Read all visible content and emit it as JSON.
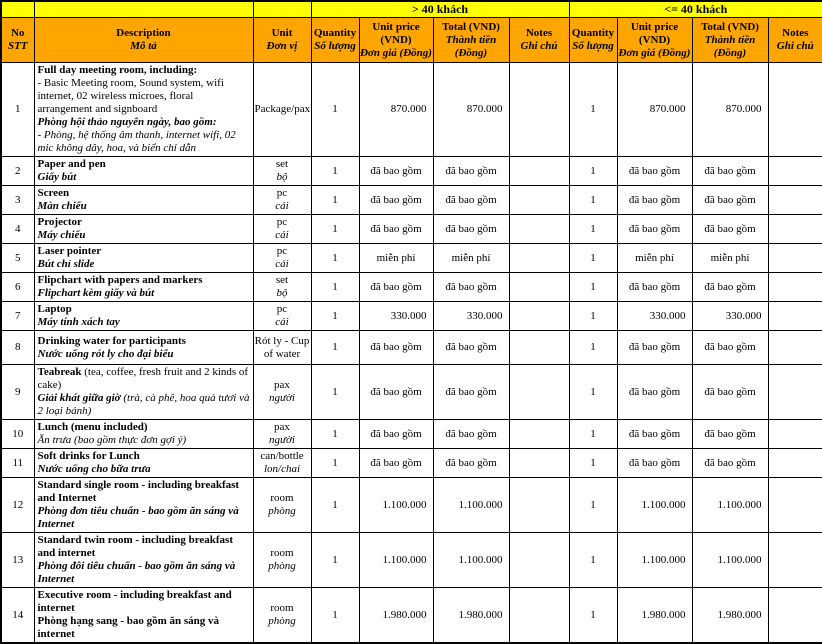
{
  "colors": {
    "header_orange": "#FFA500",
    "header_yellow": "#FFFF00",
    "border": "#000000"
  },
  "table": {
    "groups": [
      {
        "label": "> 40 khách"
      },
      {
        "label": "<= 40 khách"
      }
    ],
    "columns": {
      "no": {
        "en": "No",
        "vi": "STT"
      },
      "description": {
        "en": "Description",
        "vi": "Mô tả"
      },
      "unit": {
        "en": "Unit",
        "vi": "Đơn vị"
      },
      "quantity": {
        "en": "Quantity",
        "vi": "Số lượng"
      },
      "unit_price": {
        "en": "Unit price (VND)",
        "vi": "Đơn giá (Đồng)"
      },
      "total": {
        "en": "Total (VND)",
        "vi": "Thành tiền (Đồng)"
      },
      "notes": {
        "en": "Notes",
        "vi": "Ghi chú"
      }
    }
  },
  "rows": [
    {
      "no": "1",
      "description": [
        [
          {
            "t": "Full day meeting room, including:",
            "s": "b"
          }
        ],
        [
          {
            "t": "- Basic Meeting room, Sound system, wifi internet, 02 wireless microes, floral arrangement and signboard",
            "s": "r"
          }
        ],
        [
          {
            "t": "Phòng hội thảo nguyên ngày, bao gồm:",
            "s": "bi"
          }
        ],
        [
          {
            "t": "- Phòng, hệ thống âm thanh, internet wifi, 02 mic không dây, hoa, và biển chỉ dẫn",
            "s": "i"
          }
        ]
      ],
      "unit": [
        [
          {
            "t": "Package/pax",
            "s": "r"
          }
        ]
      ],
      "g1": {
        "qty": "1",
        "unit_price": "870.000",
        "total": "870.000",
        "notes": ""
      },
      "g2": {
        "qty": "1",
        "unit_price": "870.000",
        "total": "870.000",
        "notes": ""
      }
    },
    {
      "no": "2",
      "description": [
        [
          {
            "t": "Paper and pen",
            "s": "b"
          }
        ],
        [
          {
            "t": "Giấy bút",
            "s": "bi"
          }
        ]
      ],
      "unit": [
        [
          {
            "t": "set",
            "s": "r"
          }
        ],
        [
          {
            "t": "bộ",
            "s": "i"
          }
        ]
      ],
      "g1": {
        "qty": "1",
        "unit_price": "đã bao gồm",
        "total": "đã bao gồm",
        "notes": ""
      },
      "g2": {
        "qty": "1",
        "unit_price": "đã bao gồm",
        "total": "đã bao gồm",
        "notes": ""
      }
    },
    {
      "no": "3",
      "description": [
        [
          {
            "t": "Screen",
            "s": "b"
          }
        ],
        [
          {
            "t": "Màn chiếu",
            "s": "bi"
          }
        ]
      ],
      "unit": [
        [
          {
            "t": "pc",
            "s": "r"
          }
        ],
        [
          {
            "t": "cái",
            "s": "i"
          }
        ]
      ],
      "g1": {
        "qty": "1",
        "unit_price": "đã bao gồm",
        "total": "đã bao gồm",
        "notes": ""
      },
      "g2": {
        "qty": "1",
        "unit_price": "đã bao gồm",
        "total": "đã bao gồm",
        "notes": ""
      }
    },
    {
      "no": "4",
      "description": [
        [
          {
            "t": "Projector",
            "s": "b"
          }
        ],
        [
          {
            "t": "Máy chiếu",
            "s": "bi"
          }
        ]
      ],
      "unit": [
        [
          {
            "t": "pc",
            "s": "r"
          }
        ],
        [
          {
            "t": "cái",
            "s": "i"
          }
        ]
      ],
      "g1": {
        "qty": "1",
        "unit_price": "đã bao gồm",
        "total": "đã bao gồm",
        "notes": ""
      },
      "g2": {
        "qty": "1",
        "unit_price": "đã bao gồm",
        "total": "đã bao gồm",
        "notes": ""
      }
    },
    {
      "no": "5",
      "description": [
        [
          {
            "t": "Laser pointer",
            "s": "b"
          }
        ],
        [
          {
            "t": "Bút chỉ slide",
            "s": "bi"
          }
        ]
      ],
      "unit": [
        [
          {
            "t": "pc",
            "s": "r"
          }
        ],
        [
          {
            "t": "cái",
            "s": "i"
          }
        ]
      ],
      "g1": {
        "qty": "1",
        "unit_price": "miễn phí",
        "total": "miễn phí",
        "notes": ""
      },
      "g2": {
        "qty": "1",
        "unit_price": "miễn phí",
        "total": "miễn phí",
        "notes": ""
      }
    },
    {
      "no": "6",
      "description": [
        [
          {
            "t": "Flipchart with papers and markers",
            "s": "b"
          }
        ],
        [
          {
            "t": "Flipchart kèm giấy và bút",
            "s": "bi"
          }
        ]
      ],
      "unit": [
        [
          {
            "t": "set",
            "s": "r"
          }
        ],
        [
          {
            "t": "bộ",
            "s": "i"
          }
        ]
      ],
      "g1": {
        "qty": "1",
        "unit_price": "đã bao gồm",
        "total": "đã bao gồm",
        "notes": ""
      },
      "g2": {
        "qty": "1",
        "unit_price": "đã bao gồm",
        "total": "đã bao gồm",
        "notes": ""
      }
    },
    {
      "no": "7",
      "description": [
        [
          {
            "t": "Laptop",
            "s": "b"
          }
        ],
        [
          {
            "t": "Máy tính xách tay",
            "s": "bi"
          }
        ]
      ],
      "unit": [
        [
          {
            "t": "pc",
            "s": "r"
          }
        ],
        [
          {
            "t": "cái",
            "s": "i"
          }
        ]
      ],
      "g1": {
        "qty": "1",
        "unit_price": "330.000",
        "total": "330.000",
        "notes": ""
      },
      "g2": {
        "qty": "1",
        "unit_price": "330.000",
        "total": "330.000",
        "notes": ""
      }
    },
    {
      "no": "8",
      "description": [
        [
          {
            "t": "Drinking water for participants",
            "s": "b"
          }
        ],
        [
          {
            "t": "Nước uống rót ly cho đại biểu",
            "s": "bi"
          }
        ]
      ],
      "unit": [
        [
          {
            "t": "Rót ly - Cup of water",
            "s": "r"
          }
        ]
      ],
      "g1": {
        "qty": "1",
        "unit_price": "đã bao gồm",
        "total": "đã bao gồm",
        "notes": ""
      },
      "g2": {
        "qty": "1",
        "unit_price": "đã bao gồm",
        "total": "đã bao gồm",
        "notes": ""
      }
    },
    {
      "no": "9",
      "description": [
        [
          {
            "t": "Teabreak",
            "s": "b"
          },
          {
            "t": " (tea, coffee, fresh fruit and 2 kinds of cake)",
            "s": "r"
          }
        ],
        [
          {
            "t": "Giải khát giữa giờ ",
            "s": "bi"
          },
          {
            "t": "(trà, cà phê, hoa quả tươi và 2 loại bánh)",
            "s": "i"
          }
        ]
      ],
      "unit": [
        [
          {
            "t": "pax",
            "s": "r"
          }
        ],
        [
          {
            "t": "người",
            "s": "i"
          }
        ]
      ],
      "g1": {
        "qty": "1",
        "unit_price": "đã bao gồm",
        "total": "đã bao gồm",
        "notes": ""
      },
      "g2": {
        "qty": "1",
        "unit_price": "đã bao gồm",
        "total": "đã bao gồm",
        "notes": ""
      }
    },
    {
      "no": "10",
      "description": [
        [
          {
            "t": "Lunch (menu included)",
            "s": "b"
          }
        ],
        [
          {
            "t": "Ăn trưa (bao gồm thực đơn gợi ý)",
            "s": "i"
          }
        ]
      ],
      "unit": [
        [
          {
            "t": "pax",
            "s": "r"
          }
        ],
        [
          {
            "t": "người",
            "s": "i"
          }
        ]
      ],
      "g1": {
        "qty": "1",
        "unit_price": "đã bao gồm",
        "total": "đã bao gồm",
        "notes": ""
      },
      "g2": {
        "qty": "1",
        "unit_price": "đã bao gồm",
        "total": "đã bao gồm",
        "notes": ""
      }
    },
    {
      "no": "11",
      "description": [
        [
          {
            "t": "Soft drinks for Lunch",
            "s": "b"
          }
        ],
        [
          {
            "t": "Nước uống cho bữa trưa",
            "s": "bi"
          }
        ]
      ],
      "unit": [
        [
          {
            "t": "can/bottle",
            "s": "r"
          }
        ],
        [
          {
            "t": "lon/chai",
            "s": "i"
          }
        ]
      ],
      "g1": {
        "qty": "1",
        "unit_price": "đã bao gồm",
        "total": "đã bao gồm",
        "notes": ""
      },
      "g2": {
        "qty": "1",
        "unit_price": "đã bao gồm",
        "total": "đã bao gồm",
        "notes": ""
      }
    },
    {
      "no": "12",
      "description": [
        [
          {
            "t": "Standard single room - including breakfast and Internet",
            "s": "b"
          }
        ],
        [
          {
            "t": "Phòng đơn tiêu chuẩn - bao gồm ăn sáng và Internet",
            "s": "bi"
          }
        ]
      ],
      "unit": [
        [
          {
            "t": "room",
            "s": "r"
          }
        ],
        [
          {
            "t": "phòng",
            "s": "i"
          }
        ]
      ],
      "g1": {
        "qty": "1",
        "unit_price": "1.100.000",
        "total": "1.100.000",
        "notes": ""
      },
      "g2": {
        "qty": "1",
        "unit_price": "1.100.000",
        "total": "1.100.000",
        "notes": ""
      }
    },
    {
      "no": "13",
      "description": [
        [
          {
            "t": "Standard twin room - including breakfast and internet",
            "s": "b"
          }
        ],
        [
          {
            "t": "Phòng đôi tiêu chuẩn - bao gồm ăn sáng và Internet",
            "s": "bi"
          }
        ]
      ],
      "unit": [
        [
          {
            "t": "room",
            "s": "r"
          }
        ],
        [
          {
            "t": "phòng",
            "s": "i"
          }
        ]
      ],
      "g1": {
        "qty": "1",
        "unit_price": "1.100.000",
        "total": "1.100.000",
        "notes": ""
      },
      "g2": {
        "qty": "1",
        "unit_price": "1.100.000",
        "total": "1.100.000",
        "notes": ""
      }
    },
    {
      "no": "14",
      "description": [
        [
          {
            "t": "Executive room - including breakfast and internet",
            "s": "b"
          }
        ],
        [
          {
            "t": "Phòng hạng sang - bao gồm ăn sáng và internet",
            "s": "b"
          }
        ]
      ],
      "unit": [
        [
          {
            "t": "room",
            "s": "r"
          }
        ],
        [
          {
            "t": "phòng",
            "s": "i"
          }
        ]
      ],
      "g1": {
        "qty": "1",
        "unit_price": "1.980.000",
        "total": "1.980.000",
        "notes": ""
      },
      "g2": {
        "qty": "1",
        "unit_price": "1.980.000",
        "total": "1.980.000",
        "notes": ""
      }
    }
  ]
}
